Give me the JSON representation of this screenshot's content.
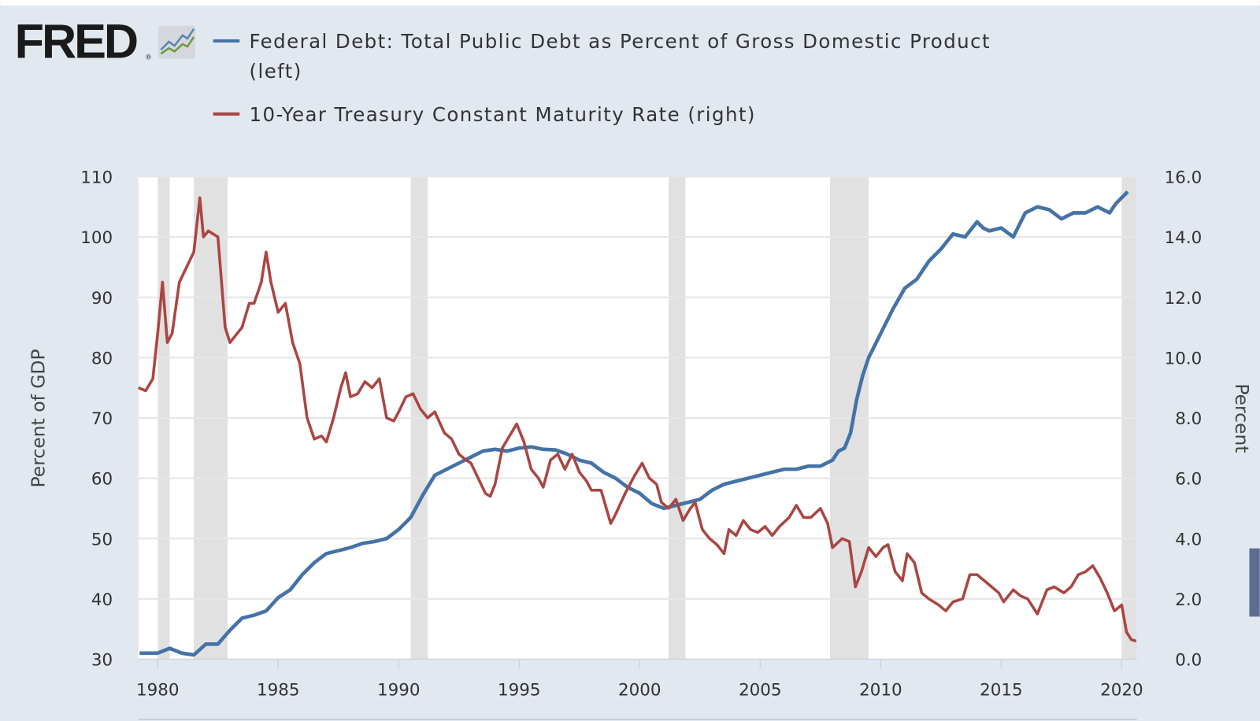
{
  "logo": {
    "text": "FRED",
    "registered": "®"
  },
  "colors": {
    "background": "#e1e8f0",
    "plot_background": "#ffffff",
    "recession": "#e1e1e1",
    "grid": "#e6e6e6",
    "debt": "#4572a7",
    "rate": "#aa4643",
    "scroll_handle": "#5a6f90"
  },
  "chart_data": {
    "type": "line",
    "title": "",
    "legend_position": "top",
    "grid": true,
    "legend": [
      {
        "line1": "Federal Debt: Total Public Debt as Percent of Gross Domestic Product",
        "line2": "(left)"
      },
      {
        "line1": "10-Year Treasury Constant Maturity Rate (right)"
      }
    ],
    "xlim": [
      1979.2,
      2020.63
    ],
    "x_ticks": [
      "1980",
      "1985",
      "1990",
      "1995",
      "2000",
      "2005",
      "2010",
      "2015",
      "2020"
    ],
    "y_left": {
      "label": "Percent of GDP",
      "lim": [
        30,
        110
      ],
      "ticks": [
        "30",
        "40",
        "50",
        "60",
        "70",
        "80",
        "90",
        "100",
        "110"
      ]
    },
    "y_right": {
      "label": "Percent",
      "lim": [
        0,
        16
      ],
      "ticks": [
        "0.0",
        "2.0",
        "4.0",
        "6.0",
        "8.0",
        "10.0",
        "12.0",
        "14.0",
        "16.0"
      ]
    },
    "recessions": [
      [
        1980.0,
        1980.5
      ],
      [
        1981.5,
        1982.9
      ],
      [
        1990.5,
        1991.2
      ],
      [
        2001.2,
        2001.9
      ],
      [
        2007.9,
        2009.5
      ],
      [
        2020.0,
        2020.63
      ]
    ],
    "series": [
      {
        "name": "Federal Debt: Total Public Debt as Percent of Gross Domestic Product",
        "axis": "left",
        "x": [
          1979.25,
          1980,
          1980.5,
          1981,
          1981.5,
          1982,
          1982.5,
          1983,
          1983.5,
          1984,
          1984.5,
          1985,
          1985.5,
          1986,
          1986.5,
          1987,
          1987.5,
          1988,
          1988.5,
          1989,
          1989.5,
          1990,
          1990.5,
          1991,
          1991.5,
          1992,
          1992.5,
          1993,
          1993.5,
          1994,
          1994.5,
          1995,
          1995.5,
          1996,
          1996.5,
          1997,
          1997.5,
          1998,
          1998.5,
          1999,
          1999.5,
          2000,
          2000.5,
          2001,
          2001.5,
          2002,
          2002.5,
          2003,
          2003.5,
          2004,
          2004.5,
          2005,
          2005.5,
          2006,
          2006.5,
          2007,
          2007.5,
          2008,
          2008.25,
          2008.5,
          2008.75,
          2009,
          2009.25,
          2009.5,
          2010,
          2010.5,
          2011,
          2011.5,
          2012,
          2012.5,
          2013,
          2013.5,
          2014,
          2014.25,
          2014.5,
          2015,
          2015.5,
          2016,
          2016.5,
          2017,
          2017.5,
          2018,
          2018.5,
          2019,
          2019.5,
          2019.75,
          2020,
          2020.25
        ],
        "y": [
          31,
          31,
          31.8,
          31,
          30.7,
          32.5,
          32.5,
          34.8,
          36.8,
          37.3,
          38,
          40.2,
          41.5,
          44,
          46,
          47.5,
          48,
          48.5,
          49.2,
          49.5,
          50,
          51.5,
          53.5,
          57.2,
          60.5,
          61.5,
          62.5,
          63.5,
          64.5,
          64.8,
          64.5,
          65,
          65.2,
          64.8,
          64.7,
          64,
          63,
          62.5,
          61,
          60,
          58.5,
          57.5,
          55.8,
          55,
          55.5,
          56,
          56.5,
          58,
          59,
          59.5,
          60,
          60.5,
          61,
          61.5,
          61.5,
          62,
          62,
          63,
          64.5,
          65,
          67.5,
          73,
          77,
          80,
          84,
          88,
          91.5,
          93,
          96,
          98,
          100.5,
          100,
          102.5,
          101.5,
          101,
          101.5,
          100,
          104,
          105,
          104.5,
          103,
          104,
          104,
          105,
          104,
          105.5,
          106.5,
          107.5
        ]
      },
      {
        "name": "10-Year Treasury Constant Maturity Rate",
        "axis": "right",
        "x": [
          1979.2,
          1979.5,
          1979.8,
          1980.0,
          1980.2,
          1980.4,
          1980.6,
          1980.9,
          1981.2,
          1981.5,
          1981.75,
          1981.9,
          1982.1,
          1982.5,
          1982.8,
          1983.0,
          1983.5,
          1983.8,
          1984.0,
          1984.3,
          1984.5,
          1984.7,
          1985.0,
          1985.3,
          1985.6,
          1985.9,
          1986.2,
          1986.5,
          1986.8,
          1987.0,
          1987.3,
          1987.6,
          1987.8,
          1988.0,
          1988.3,
          1988.6,
          1988.9,
          1989.2,
          1989.5,
          1989.8,
          1990.0,
          1990.3,
          1990.6,
          1990.9,
          1991.2,
          1991.5,
          1991.9,
          1992.2,
          1992.5,
          1992.8,
          1993.0,
          1993.3,
          1993.6,
          1993.8,
          1994.0,
          1994.3,
          1994.6,
          1994.9,
          1995.2,
          1995.5,
          1995.8,
          1996.0,
          1996.3,
          1996.6,
          1996.9,
          1997.2,
          1997.5,
          1997.8,
          1998.0,
          1998.4,
          1998.8,
          1999.0,
          1999.4,
          1999.8,
          2000.1,
          2000.4,
          2000.7,
          2000.9,
          2001.2,
          2001.5,
          2001.8,
          2002.1,
          2002.3,
          2002.6,
          2002.9,
          2003.2,
          2003.5,
          2003.7,
          2004.0,
          2004.3,
          2004.6,
          2004.9,
          2005.2,
          2005.5,
          2005.8,
          2006.2,
          2006.5,
          2006.8,
          2007.1,
          2007.5,
          2007.8,
          2008.0,
          2008.4,
          2008.7,
          2008.95,
          2009.2,
          2009.5,
          2009.8,
          2010.1,
          2010.3,
          2010.6,
          2010.9,
          2011.1,
          2011.4,
          2011.7,
          2012.0,
          2012.4,
          2012.7,
          2013.0,
          2013.4,
          2013.7,
          2014.0,
          2014.3,
          2014.6,
          2014.9,
          2015.1,
          2015.5,
          2015.8,
          2016.1,
          2016.5,
          2016.9,
          2017.2,
          2017.6,
          2017.9,
          2018.2,
          2018.5,
          2018.8,
          2019.1,
          2019.4,
          2019.7,
          2020.0,
          2020.2,
          2020.4,
          2020.6
        ],
        "y": [
          9.0,
          8.9,
          9.3,
          10.8,
          12.5,
          10.5,
          10.8,
          12.5,
          13.0,
          13.5,
          15.3,
          14.0,
          14.2,
          14.0,
          11.0,
          10.5,
          11.0,
          11.8,
          11.8,
          12.5,
          13.5,
          12.5,
          11.5,
          11.8,
          10.5,
          9.8,
          8.0,
          7.3,
          7.4,
          7.2,
          8.0,
          9.0,
          9.5,
          8.7,
          8.8,
          9.2,
          9.0,
          9.3,
          8.0,
          7.9,
          8.2,
          8.7,
          8.8,
          8.3,
          8.0,
          8.2,
          7.5,
          7.3,
          6.8,
          6.6,
          6.5,
          6.0,
          5.5,
          5.4,
          5.8,
          7.0,
          7.4,
          7.8,
          7.2,
          6.3,
          6.0,
          5.7,
          6.6,
          6.8,
          6.3,
          6.8,
          6.2,
          5.9,
          5.6,
          5.6,
          4.5,
          4.8,
          5.5,
          6.1,
          6.5,
          6.0,
          5.8,
          5.2,
          5.0,
          5.3,
          4.6,
          5.0,
          5.2,
          4.3,
          4.0,
          3.8,
          3.5,
          4.3,
          4.1,
          4.6,
          4.3,
          4.2,
          4.4,
          4.1,
          4.4,
          4.7,
          5.1,
          4.7,
          4.7,
          5.0,
          4.5,
          3.7,
          4.0,
          3.9,
          2.4,
          2.9,
          3.7,
          3.4,
          3.7,
          3.8,
          2.9,
          2.6,
          3.5,
          3.2,
          2.2,
          2.0,
          1.8,
          1.6,
          1.9,
          2.0,
          2.8,
          2.8,
          2.6,
          2.4,
          2.2,
          1.9,
          2.3,
          2.1,
          2.0,
          1.5,
          2.3,
          2.4,
          2.2,
          2.4,
          2.8,
          2.9,
          3.1,
          2.7,
          2.2,
          1.6,
          1.8,
          0.9,
          0.65,
          0.6
        ]
      }
    ]
  }
}
